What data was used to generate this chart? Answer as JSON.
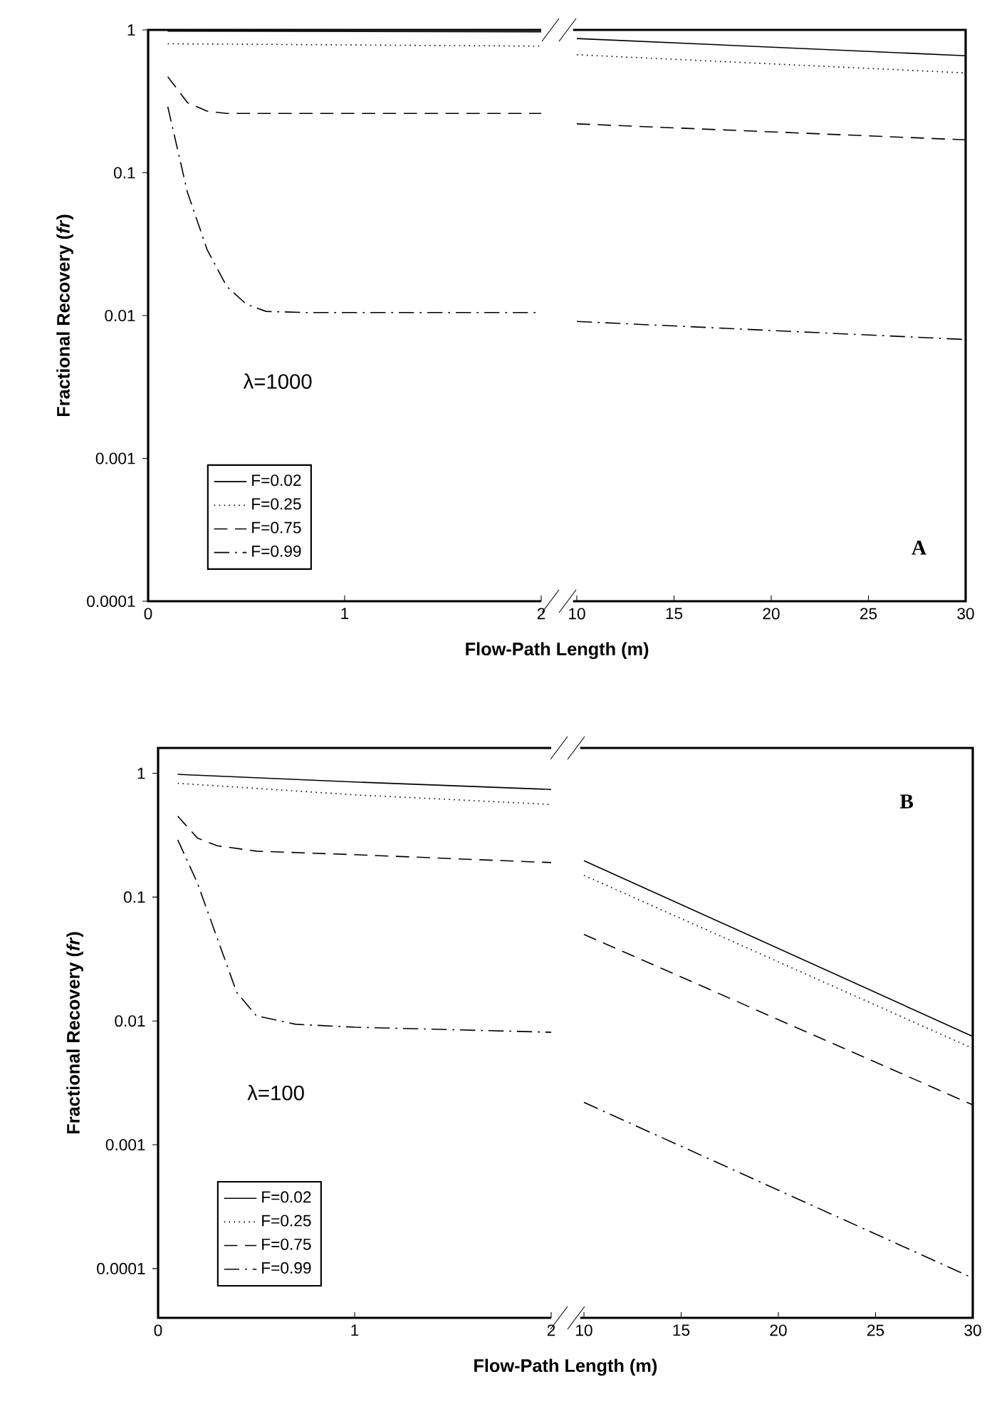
{
  "chart_data": [
    {
      "type": "line",
      "log": "y",
      "xlim": [
        0,
        2
      ],
      "xticks": [
        0,
        1,
        2
      ],
      "ylim": [
        0.0001,
        1
      ],
      "yticks": [
        0.0001,
        0.001,
        0.01,
        0.1,
        1
      ],
      "xlabel": "Flow-Path Length (m)",
      "ylabel": "Fractional Recovery (*fr*)",
      "legend": "bottom left",
      "annotations": [
        "λ=1000"
      ],
      "series": [
        {
          "name": "F=0.02",
          "color": "#000000",
          "line_style": "solid",
          "x": [
            0.1,
            2
          ],
          "values": [
            0.98,
            0.97
          ]
        },
        {
          "name": "F=0.25",
          "color": "#000000",
          "line_style": "dotted",
          "x": [
            0.1,
            2
          ],
          "values": [
            0.8,
            0.77
          ]
        },
        {
          "name": "F=0.75",
          "color": "#000000",
          "line_style": "dashed",
          "x": [
            0.1,
            0.2,
            0.3,
            0.4,
            0.6,
            1,
            2
          ],
          "values": [
            0.47,
            0.31,
            0.27,
            0.26,
            0.26,
            0.26,
            0.26
          ]
        },
        {
          "name": "F=0.99",
          "color": "#000000",
          "line_style": "dashdot",
          "x": [
            0.1,
            0.2,
            0.3,
            0.4,
            0.5,
            0.6,
            0.8,
            1,
            2
          ],
          "values": [
            0.29,
            0.073,
            0.029,
            0.016,
            0.012,
            0.0107,
            0.0105,
            0.0105,
            0.0105
          ]
        }
      ]
    },
    {
      "type": "line",
      "log": "y",
      "xlim": [
        10,
        30
      ],
      "xticks": [
        10,
        15,
        20,
        25,
        30
      ],
      "ylim": [
        0.0001,
        1
      ],
      "tick_labels": "x",
      "annotations": [
        "A"
      ],
      "series": [
        {
          "color": "#000000",
          "line_style": "solid",
          "x": [
            10,
            30
          ],
          "values": [
            0.87,
            0.66
          ]
        },
        {
          "color": "#000000",
          "line_style": "dotted",
          "x": [
            10,
            30
          ],
          "values": [
            0.67,
            0.5
          ]
        },
        {
          "color": "#000000",
          "line_style": "dashed",
          "x": [
            10,
            30
          ],
          "values": [
            0.22,
            0.17
          ]
        },
        {
          "color": "#000000",
          "line_style": "dashdot",
          "x": [
            10,
            30
          ],
          "values": [
            0.0091,
            0.0068
          ]
        }
      ]
    },
    {
      "type": "line",
      "log": "y",
      "xlim": [
        0,
        2
      ],
      "xticks": [
        0,
        1,
        2
      ],
      "ylim": [
        4e-05,
        1.6
      ],
      "yticks": [
        0.0001,
        0.001,
        0.01,
        0.1,
        1
      ],
      "xlabel": "Flow-Path Length (m)",
      "ylabel": "Fractional Recovery (*fr*)",
      "legend": "bottom left",
      "annotations": [
        "λ=100"
      ],
      "series": [
        {
          "name": "F=0.02",
          "color": "#000000",
          "line_style": "solid",
          "x": [
            0.1,
            1,
            2
          ],
          "values": [
            0.98,
            0.85,
            0.74
          ]
        },
        {
          "name": "F=0.25",
          "color": "#000000",
          "line_style": "dotted",
          "x": [
            0.1,
            1,
            2
          ],
          "values": [
            0.83,
            0.67,
            0.56
          ]
        },
        {
          "name": "F=0.75",
          "color": "#000000",
          "line_style": "dashed",
          "x": [
            0.1,
            0.2,
            0.3,
            0.5,
            1,
            2
          ],
          "values": [
            0.45,
            0.3,
            0.26,
            0.235,
            0.22,
            0.19
          ]
        },
        {
          "name": "F=0.99",
          "color": "#000000",
          "line_style": "dashdot",
          "x": [
            0.1,
            0.2,
            0.3,
            0.4,
            0.5,
            0.7,
            1,
            2
          ],
          "values": [
            0.29,
            0.13,
            0.047,
            0.017,
            0.011,
            0.0094,
            0.0089,
            0.0081
          ]
        }
      ]
    },
    {
      "type": "line",
      "log": "y",
      "xlim": [
        10,
        30
      ],
      "xticks": [
        10,
        15,
        20,
        25,
        30
      ],
      "ylim": [
        4e-05,
        1.6
      ],
      "tick_labels": "x",
      "annotations": [
        "B"
      ],
      "series": [
        {
          "color": "#000000",
          "line_style": "solid",
          "x": [
            10,
            30
          ],
          "values": [
            0.197,
            0.0075
          ]
        },
        {
          "color": "#000000",
          "line_style": "dotted",
          "x": [
            10,
            30
          ],
          "values": [
            0.15,
            0.006
          ]
        },
        {
          "color": "#000000",
          "line_style": "dashed",
          "x": [
            10,
            30
          ],
          "values": [
            0.05,
            0.0021
          ]
        },
        {
          "color": "#000000",
          "line_style": "dashdot",
          "x": [
            10,
            30
          ],
          "values": [
            0.0022,
            8.4e-05
          ]
        }
      ]
    }
  ]
}
